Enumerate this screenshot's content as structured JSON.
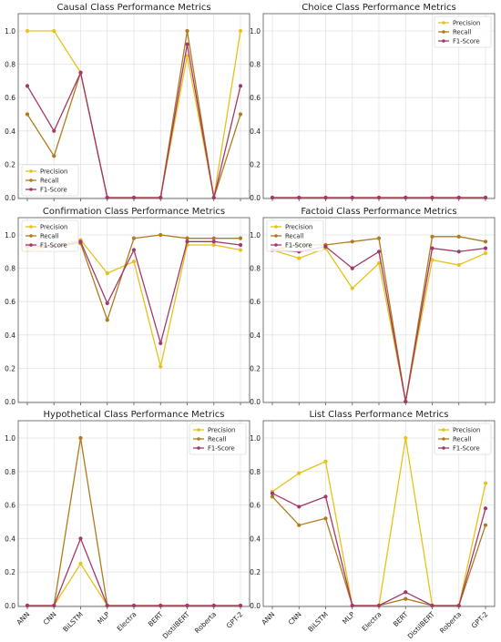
{
  "colors": {
    "precision": "#e6c21a",
    "recall": "#b07b1e",
    "f1": "#a03a6a",
    "grid": "#e3e3e3",
    "axis": "#555555"
  },
  "chart_data": [
    {
      "type": "line",
      "title": "Causal Class Performance Metrics",
      "categories": [
        "ANN",
        "CNN",
        "BiLSTM",
        "MLP",
        "Electra",
        "BERT",
        "DistilBERT",
        "Roberta",
        "GPT-2"
      ],
      "ylim": [
        0,
        1.0
      ],
      "yticks": [
        "0.0",
        "0.2",
        "0.4",
        "0.6",
        "0.8",
        "1.0"
      ],
      "show_xticks": false,
      "legend": "lower-left",
      "series": [
        {
          "name": "Precision",
          "values": [
            1.0,
            1.0,
            0.75,
            0.0,
            0.0,
            0.0,
            0.85,
            0.0,
            1.0
          ]
        },
        {
          "name": "Recall",
          "values": [
            0.5,
            0.25,
            0.75,
            0.0,
            0.0,
            0.0,
            1.0,
            0.0,
            0.5
          ]
        },
        {
          "name": "F1-Score",
          "values": [
            0.67,
            0.4,
            0.75,
            0.0,
            0.0,
            0.0,
            0.92,
            0.0,
            0.67
          ]
        }
      ]
    },
    {
      "type": "line",
      "title": "Choice Class Performance Metrics",
      "categories": [
        "ANN",
        "CNN",
        "BiLSTM",
        "MLP",
        "Electra",
        "BERT",
        "DistilBERT",
        "Roberta",
        "GPT-2"
      ],
      "ylim": [
        0,
        1.0
      ],
      "yticks": [
        "0.0",
        "0.2",
        "0.4",
        "0.6",
        "0.8",
        "1.0"
      ],
      "show_xticks": false,
      "legend": "upper-right",
      "series": [
        {
          "name": "Precision",
          "values": [
            0,
            0,
            0,
            0,
            0,
            0,
            0,
            0,
            0
          ]
        },
        {
          "name": "Recall",
          "values": [
            0,
            0,
            0,
            0,
            0,
            0,
            0,
            0,
            0
          ]
        },
        {
          "name": "F1-Score",
          "values": [
            0,
            0,
            0,
            0,
            0,
            0,
            0,
            0,
            0
          ]
        }
      ]
    },
    {
      "type": "line",
      "title": "Confirmation Class Performance Metrics",
      "categories": [
        "ANN",
        "CNN",
        "BiLSTM",
        "MLP",
        "Electra",
        "BERT",
        "DistilBERT",
        "Roberta",
        "GPT-2"
      ],
      "ylim": [
        0,
        1.0
      ],
      "yticks": [
        "0.0",
        "0.2",
        "0.4",
        "0.6",
        "0.8",
        "1.0"
      ],
      "show_xticks": false,
      "legend": "upper-left",
      "series": [
        {
          "name": "Precision",
          "values": [
            0.91,
            0.93,
            0.97,
            0.77,
            0.84,
            0.21,
            0.94,
            0.94,
            0.91
          ]
        },
        {
          "name": "Recall",
          "values": [
            0.94,
            0.93,
            0.95,
            0.49,
            0.98,
            1.0,
            0.98,
            0.98,
            0.98
          ]
        },
        {
          "name": "F1-Score",
          "values": [
            0.93,
            0.93,
            0.96,
            0.59,
            0.91,
            0.35,
            0.96,
            0.96,
            0.94
          ]
        }
      ]
    },
    {
      "type": "line",
      "title": "Factoid Class Performance Metrics",
      "categories": [
        "ANN",
        "CNN",
        "BiLSTM",
        "MLP",
        "Electra",
        "BERT",
        "DistilBERT",
        "Roberta",
        "GPT-2"
      ],
      "ylim": [
        0,
        1.0
      ],
      "yticks": [
        "0.0",
        "0.2",
        "0.4",
        "0.6",
        "0.8",
        "1.0"
      ],
      "show_xticks": false,
      "legend": "upper-left",
      "series": [
        {
          "name": "Precision",
          "values": [
            0.91,
            0.86,
            0.92,
            0.68,
            0.83,
            0.0,
            0.85,
            0.82,
            0.89
          ]
        },
        {
          "name": "Recall",
          "values": [
            0.91,
            0.94,
            0.94,
            0.96,
            0.98,
            0.0,
            0.99,
            0.99,
            0.96
          ]
        },
        {
          "name": "F1-Score",
          "values": [
            0.91,
            0.9,
            0.93,
            0.8,
            0.9,
            0.0,
            0.92,
            0.9,
            0.92
          ]
        }
      ]
    },
    {
      "type": "line",
      "title": "Hypothetical Class Performance Metrics",
      "categories": [
        "ANN",
        "CNN",
        "BiLSTM",
        "MLP",
        "Electra",
        "BERT",
        "DistilBERT",
        "Roberta",
        "GPT-2"
      ],
      "ylim": [
        0,
        1.0
      ],
      "yticks": [
        "0.0",
        "0.2",
        "0.4",
        "0.6",
        "0.8",
        "1.0"
      ],
      "show_xticks": true,
      "legend": "upper-right",
      "series": [
        {
          "name": "Precision",
          "values": [
            0.0,
            0.0,
            0.25,
            0.0,
            0.0,
            0.0,
            0.0,
            0.0,
            0.0
          ]
        },
        {
          "name": "Recall",
          "values": [
            0.0,
            0.0,
            1.0,
            0.0,
            0.0,
            0.0,
            0.0,
            0.0,
            0.0
          ]
        },
        {
          "name": "F1-Score",
          "values": [
            0.0,
            0.0,
            0.4,
            0.0,
            0.0,
            0.0,
            0.0,
            0.0,
            0.0
          ]
        }
      ]
    },
    {
      "type": "line",
      "title": "List Class Performance Metrics",
      "categories": [
        "ANN",
        "CNN",
        "BiLSTM",
        "MLP",
        "Electra",
        "BERT",
        "DistilBERT",
        "Roberta",
        "GPT-2"
      ],
      "ylim": [
        0,
        1.0
      ],
      "yticks": [
        "0.0",
        "0.2",
        "0.4",
        "0.6",
        "0.8",
        "1.0"
      ],
      "show_xticks": true,
      "legend": "upper-right",
      "series": [
        {
          "name": "Precision",
          "values": [
            0.68,
            0.79,
            0.86,
            0.0,
            0.0,
            1.0,
            0.0,
            0.0,
            0.73
          ]
        },
        {
          "name": "Recall",
          "values": [
            0.65,
            0.48,
            0.52,
            0.0,
            0.0,
            0.04,
            0.0,
            0.0,
            0.48
          ]
        },
        {
          "name": "F1-Score",
          "values": [
            0.67,
            0.59,
            0.65,
            0.0,
            0.0,
            0.08,
            0.0,
            0.0,
            0.58
          ]
        }
      ]
    }
  ]
}
